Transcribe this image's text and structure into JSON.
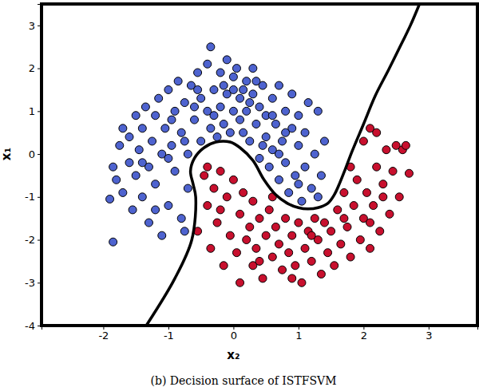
{
  "chart_data": {
    "type": "scatter",
    "x_label": "x₂",
    "y_label": "x₁",
    "caption": "(b) Decision surface of ISTFSVM",
    "xlim": [
      -2.95,
      3.75
    ],
    "ylim": [
      -4,
      3.5
    ],
    "xticks": [
      -2,
      -1,
      0,
      1,
      2,
      3
    ],
    "yticks": [
      -4,
      -3,
      -2,
      -1,
      0,
      1,
      2,
      3
    ],
    "series": [
      {
        "type": "scatter",
        "marker": "circle",
        "color": "#4e63cf",
        "x": [
          -1.9,
          -1.85,
          -1.85,
          -1.8,
          -1.75,
          -1.7,
          -1.7,
          -1.6,
          -1.6,
          -1.55,
          -1.5,
          -1.5,
          -1.45,
          -1.4,
          -1.4,
          -1.35,
          -1.3,
          -1.3,
          -1.25,
          -1.2,
          -1.2,
          -1.15,
          -1.1,
          -1.1,
          -1.05,
          -1.0,
          -1.0,
          -0.95,
          -0.9,
          -0.9,
          -0.85,
          -0.8,
          -0.8,
          -0.75,
          -0.7,
          -0.7,
          -0.65,
          -0.6,
          -0.55,
          -0.5,
          -0.5,
          -0.75,
          -0.4,
          -0.4,
          -0.35,
          -0.35,
          -0.3,
          -0.25,
          -0.2,
          -0.2,
          -0.15,
          -0.1,
          -0.1,
          -0.05,
          0.0,
          0.0,
          0.05,
          0.1,
          0.1,
          0.15,
          0.2,
          0.2,
          0.25,
          0.3,
          0.3,
          0.35,
          0.4,
          0.4,
          0.45,
          0.5,
          0.5,
          0.55,
          0.6,
          0.6,
          0.65,
          0.7,
          0.7,
          0.75,
          0.8,
          0.8,
          0.85,
          0.9,
          0.9,
          0.95,
          1.0,
          1.0,
          1.05,
          1.1,
          1.1,
          1.15,
          1.2,
          1.25,
          1.3,
          1.3,
          1.35,
          1.4,
          -1.0,
          -0.6,
          0.0,
          0.25,
          -0.3,
          0.6,
          -1.4,
          -0.95,
          0.45,
          0.8,
          -0.15,
          0.35,
          -0.75,
          1.0,
          -1.2,
          -0.55,
          0.15,
          0.7
        ],
        "values": [
          -1.05,
          -2.05,
          -0.3,
          -0.6,
          0.2,
          0.6,
          -0.9,
          -0.2,
          0.4,
          -1.3,
          0.9,
          -0.5,
          0.1,
          -1.0,
          0.6,
          1.1,
          -0.3,
          -1.6,
          0.3,
          0.9,
          -0.7,
          1.3,
          0.0,
          -1.9,
          0.6,
          1.5,
          -1.2,
          0.2,
          1.0,
          -0.4,
          1.7,
          0.5,
          -1.5,
          1.2,
          0.0,
          -0.8,
          1.6,
          0.8,
          1.9,
          0.3,
          1.3,
          -1.8,
          1.0,
          2.1,
          0.6,
          2.5,
          1.5,
          0.4,
          1.9,
          1.1,
          0.7,
          1.4,
          2.2,
          0.5,
          1.8,
          1.0,
          2.0,
          0.8,
          1.3,
          0.5,
          1.7,
          1.0,
          0.3,
          1.4,
          2.0,
          0.7,
          1.1,
          -0.1,
          1.6,
          0.4,
          0.9,
          -0.3,
          1.3,
          0.1,
          0.7,
          -0.6,
          1.6,
          0.3,
          1.0,
          -0.2,
          -0.9,
          0.6,
          1.4,
          -0.5,
          0.2,
          0.9,
          -1.1,
          -0.3,
          0.5,
          1.2,
          -0.8,
          0.0,
          1.0,
          -1.0,
          -0.5,
          0.3,
          -0.1,
          1.1,
          1.5,
          1.2,
          0.9,
          0.9,
          -0.2,
          0.8,
          0.2,
          0.5,
          1.6,
          1.7,
          0.3,
          -0.7,
          -1.3,
          1.5,
          1.5,
          0.0
        ]
      },
      {
        "type": "scatter",
        "marker": "circle",
        "color": "#c8102e",
        "x": [
          -0.55,
          -0.45,
          -0.4,
          -0.35,
          -0.3,
          -0.25,
          -0.2,
          -0.15,
          -0.1,
          -0.05,
          0.0,
          0.05,
          0.1,
          0.1,
          0.15,
          0.2,
          0.25,
          0.3,
          0.3,
          0.35,
          0.4,
          0.45,
          0.5,
          0.55,
          0.6,
          0.65,
          0.7,
          0.75,
          0.8,
          0.85,
          0.9,
          0.95,
          1.0,
          1.05,
          1.1,
          1.15,
          1.2,
          1.25,
          1.3,
          1.35,
          1.4,
          1.45,
          1.5,
          1.55,
          1.6,
          1.65,
          1.7,
          1.75,
          1.8,
          1.85,
          1.9,
          1.95,
          2.0,
          2.0,
          2.05,
          2.1,
          2.1,
          2.15,
          2.2,
          2.25,
          2.3,
          2.35,
          2.4,
          2.45,
          2.5,
          2.55,
          2.6,
          2.65,
          2.7,
          2.3,
          1.8,
          2.1,
          0.6,
          -0.2,
          1.2,
          0.9,
          1.7,
          0.4,
          2.2,
          -0.4
        ],
        "values": [
          -1.8,
          -0.5,
          -1.2,
          -2.2,
          -0.8,
          -1.6,
          -0.4,
          -2.6,
          -1.0,
          -1.9,
          -0.6,
          -2.3,
          -3.0,
          -1.4,
          -0.9,
          -2.0,
          -1.7,
          -2.6,
          -1.1,
          -2.2,
          -1.5,
          -2.9,
          -1.9,
          -1.3,
          -2.4,
          -1.7,
          -2.1,
          -2.7,
          -1.5,
          -2.3,
          -1.9,
          -2.6,
          -1.6,
          -3.0,
          -2.2,
          -1.8,
          -2.5,
          -1.5,
          -2.0,
          -2.8,
          -1.6,
          -2.3,
          -1.8,
          -2.6,
          -1.3,
          -2.1,
          -0.9,
          -1.7,
          -2.4,
          -1.2,
          -0.6,
          -2.0,
          -1.5,
          0.3,
          -0.9,
          0.6,
          -2.2,
          -1.2,
          -0.3,
          -1.8,
          -0.7,
          0.1,
          -1.4,
          -0.4,
          0.2,
          -1.0,
          0.1,
          0.2,
          -0.45,
          -1.0,
          -0.3,
          -1.6,
          -1.0,
          -1.3,
          -1.9,
          -2.9,
          -1.5,
          -2.5,
          0.5,
          -0.3
        ]
      },
      {
        "type": "line",
        "line_style": "solid",
        "color": "#000000",
        "x": [
          -1.34,
          -0.9,
          -0.64,
          -0.58,
          -0.62,
          -0.66,
          -0.6,
          -0.45,
          -0.27,
          -0.05,
          0.1,
          0.3,
          0.47,
          0.65,
          0.83,
          1.0,
          1.14,
          1.3,
          1.45,
          1.55,
          1.63,
          1.72,
          1.82,
          2.0,
          2.18,
          2.38,
          2.55,
          2.72,
          2.86
        ],
        "values": [
          -4.0,
          -2.9,
          -2.0,
          -1.0,
          -0.7,
          -0.4,
          -0.1,
          0.15,
          0.28,
          0.28,
          0.15,
          -0.15,
          -0.6,
          -0.95,
          -1.15,
          -1.25,
          -1.28,
          -1.25,
          -1.15,
          -0.95,
          -0.69,
          -0.35,
          0.05,
          0.7,
          1.36,
          1.95,
          2.47,
          3.0,
          3.5
        ]
      }
    ]
  }
}
